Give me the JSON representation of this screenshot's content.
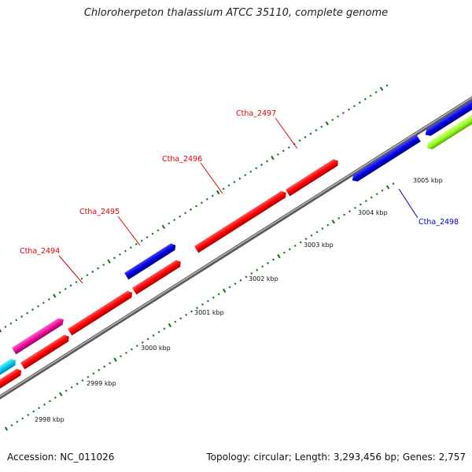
{
  "title": "Chloroherpeton thalassium ATCC 35110, complete genome",
  "footer": {
    "accession": "Accession: NC_011026",
    "summary": "Topology: circular; Length: 3,293,456 bp; Genes: 2,757"
  },
  "kbp_labels": [
    "2998 kbp",
    "2999 kbp",
    "3000 kbp",
    "3001 kbp",
    "3002 kbp",
    "3003 kbp",
    "3004 kbp",
    "3005 kbp"
  ],
  "gene_labels": [
    {
      "text": "Ctha_2494",
      "color": "#e00000"
    },
    {
      "text": "Ctha_2495",
      "color": "#e00000"
    },
    {
      "text": "Ctha_2496",
      "color": "#e00000"
    },
    {
      "text": "Ctha_2497",
      "color": "#e00000"
    },
    {
      "text": "Ctha_2498",
      "color": "#0000cc"
    }
  ],
  "colors": {
    "backbone": "#888888",
    "red": "#ff0000",
    "blue": "#0000dd",
    "magenta": "#ee1199",
    "cyan": "#00ccee",
    "lime": "#99ff22",
    "tick": "#1e7a1e"
  }
}
